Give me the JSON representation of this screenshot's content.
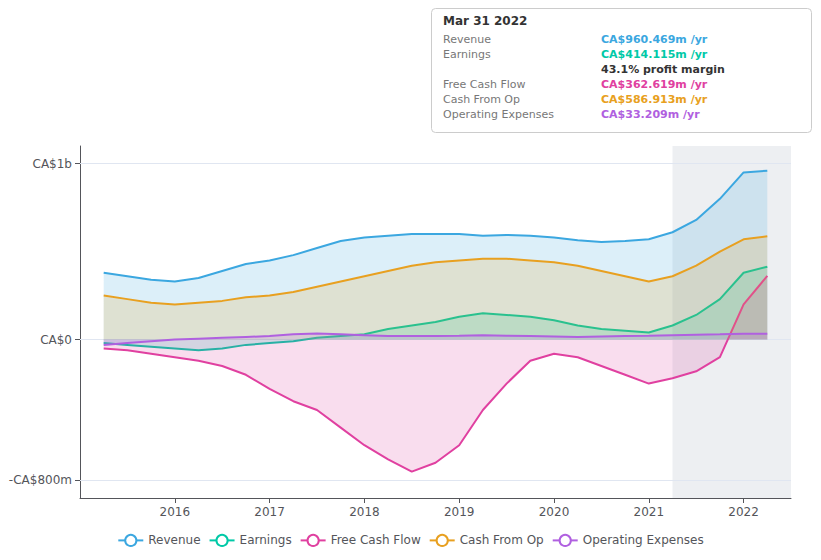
{
  "chart_data": {
    "type": "area",
    "x": [
      2015.25,
      2015.5,
      2015.75,
      2016.0,
      2016.25,
      2016.5,
      2016.75,
      2017.0,
      2017.25,
      2017.5,
      2017.75,
      2018.0,
      2018.25,
      2018.5,
      2018.75,
      2019.0,
      2019.25,
      2019.5,
      2019.75,
      2020.0,
      2020.25,
      2020.5,
      2020.75,
      2021.0,
      2021.25,
      2021.5,
      2021.75,
      2022.0,
      2022.25
    ],
    "series": [
      {
        "name": "Revenue",
        "color": "#3ba7e0",
        "values": [
          380,
          360,
          340,
          330,
          350,
          390,
          430,
          450,
          480,
          520,
          560,
          580,
          590,
          600,
          600,
          600,
          590,
          595,
          590,
          580,
          565,
          555,
          560,
          570,
          610,
          680,
          800,
          950,
          960
        ]
      },
      {
        "name": "Earnings",
        "color": "#00c9a7",
        "values": [
          -20,
          -30,
          -40,
          -50,
          -60,
          -50,
          -30,
          -20,
          -10,
          10,
          20,
          30,
          60,
          80,
          100,
          130,
          150,
          140,
          130,
          110,
          80,
          60,
          50,
          40,
          80,
          140,
          230,
          380,
          414
        ]
      },
      {
        "name": "Free Cash Flow",
        "color": "#e040a0",
        "values": [
          -50,
          -60,
          -80,
          -100,
          -120,
          -150,
          -200,
          -280,
          -350,
          -400,
          -500,
          -600,
          -680,
          -750,
          -700,
          -600,
          -400,
          -250,
          -120,
          -80,
          -100,
          -150,
          -200,
          -250,
          -220,
          -180,
          -100,
          200,
          362
        ]
      },
      {
        "name": "Cash From Op",
        "color": "#e8a020",
        "values": [
          250,
          230,
          210,
          200,
          210,
          220,
          240,
          250,
          270,
          300,
          330,
          360,
          390,
          420,
          440,
          450,
          460,
          460,
          450,
          440,
          420,
          390,
          360,
          330,
          360,
          420,
          500,
          570,
          587
        ]
      },
      {
        "name": "Operating Expenses",
        "color": "#b060e0",
        "values": [
          -30,
          -20,
          -10,
          0,
          5,
          10,
          15,
          20,
          30,
          35,
          30,
          25,
          20,
          20,
          20,
          22,
          25,
          22,
          20,
          18,
          15,
          18,
          20,
          22,
          25,
          28,
          30,
          33,
          33
        ]
      }
    ],
    "xlim": [
      2015.0,
      2022.5
    ],
    "xticks": [
      2016,
      2017,
      2018,
      2019,
      2020,
      2021,
      2022
    ],
    "ylim": [
      -900,
      1100
    ],
    "yticks": [
      {
        "value": 1000,
        "label": "CA$1b"
      },
      {
        "value": 0,
        "label": "CA$0"
      },
      {
        "value": -800,
        "label": "-CA$800m"
      }
    ],
    "highlight_x": 2021.25,
    "grid": true,
    "legend": "bottom",
    "annotations": [
      {
        "title": "Mar 31 2022",
        "rows": [
          {
            "label": "Revenue",
            "text": "CA$960.469m /yr",
            "color": "#3ba7e0"
          },
          {
            "label": "Earnings",
            "text": "CA$414.115m /yr",
            "color": "#00c9a7"
          },
          {
            "text": "43.1% profit margin"
          },
          {
            "label": "Free Cash Flow",
            "text": "CA$362.619m /yr",
            "color": "#e040a0"
          },
          {
            "label": "Cash From Op",
            "text": "CA$586.913m /yr",
            "color": "#e8a020"
          },
          {
            "label": "Operating Expenses",
            "text": "CA$33.209m /yr",
            "color": "#b060e0"
          }
        ]
      }
    ]
  }
}
